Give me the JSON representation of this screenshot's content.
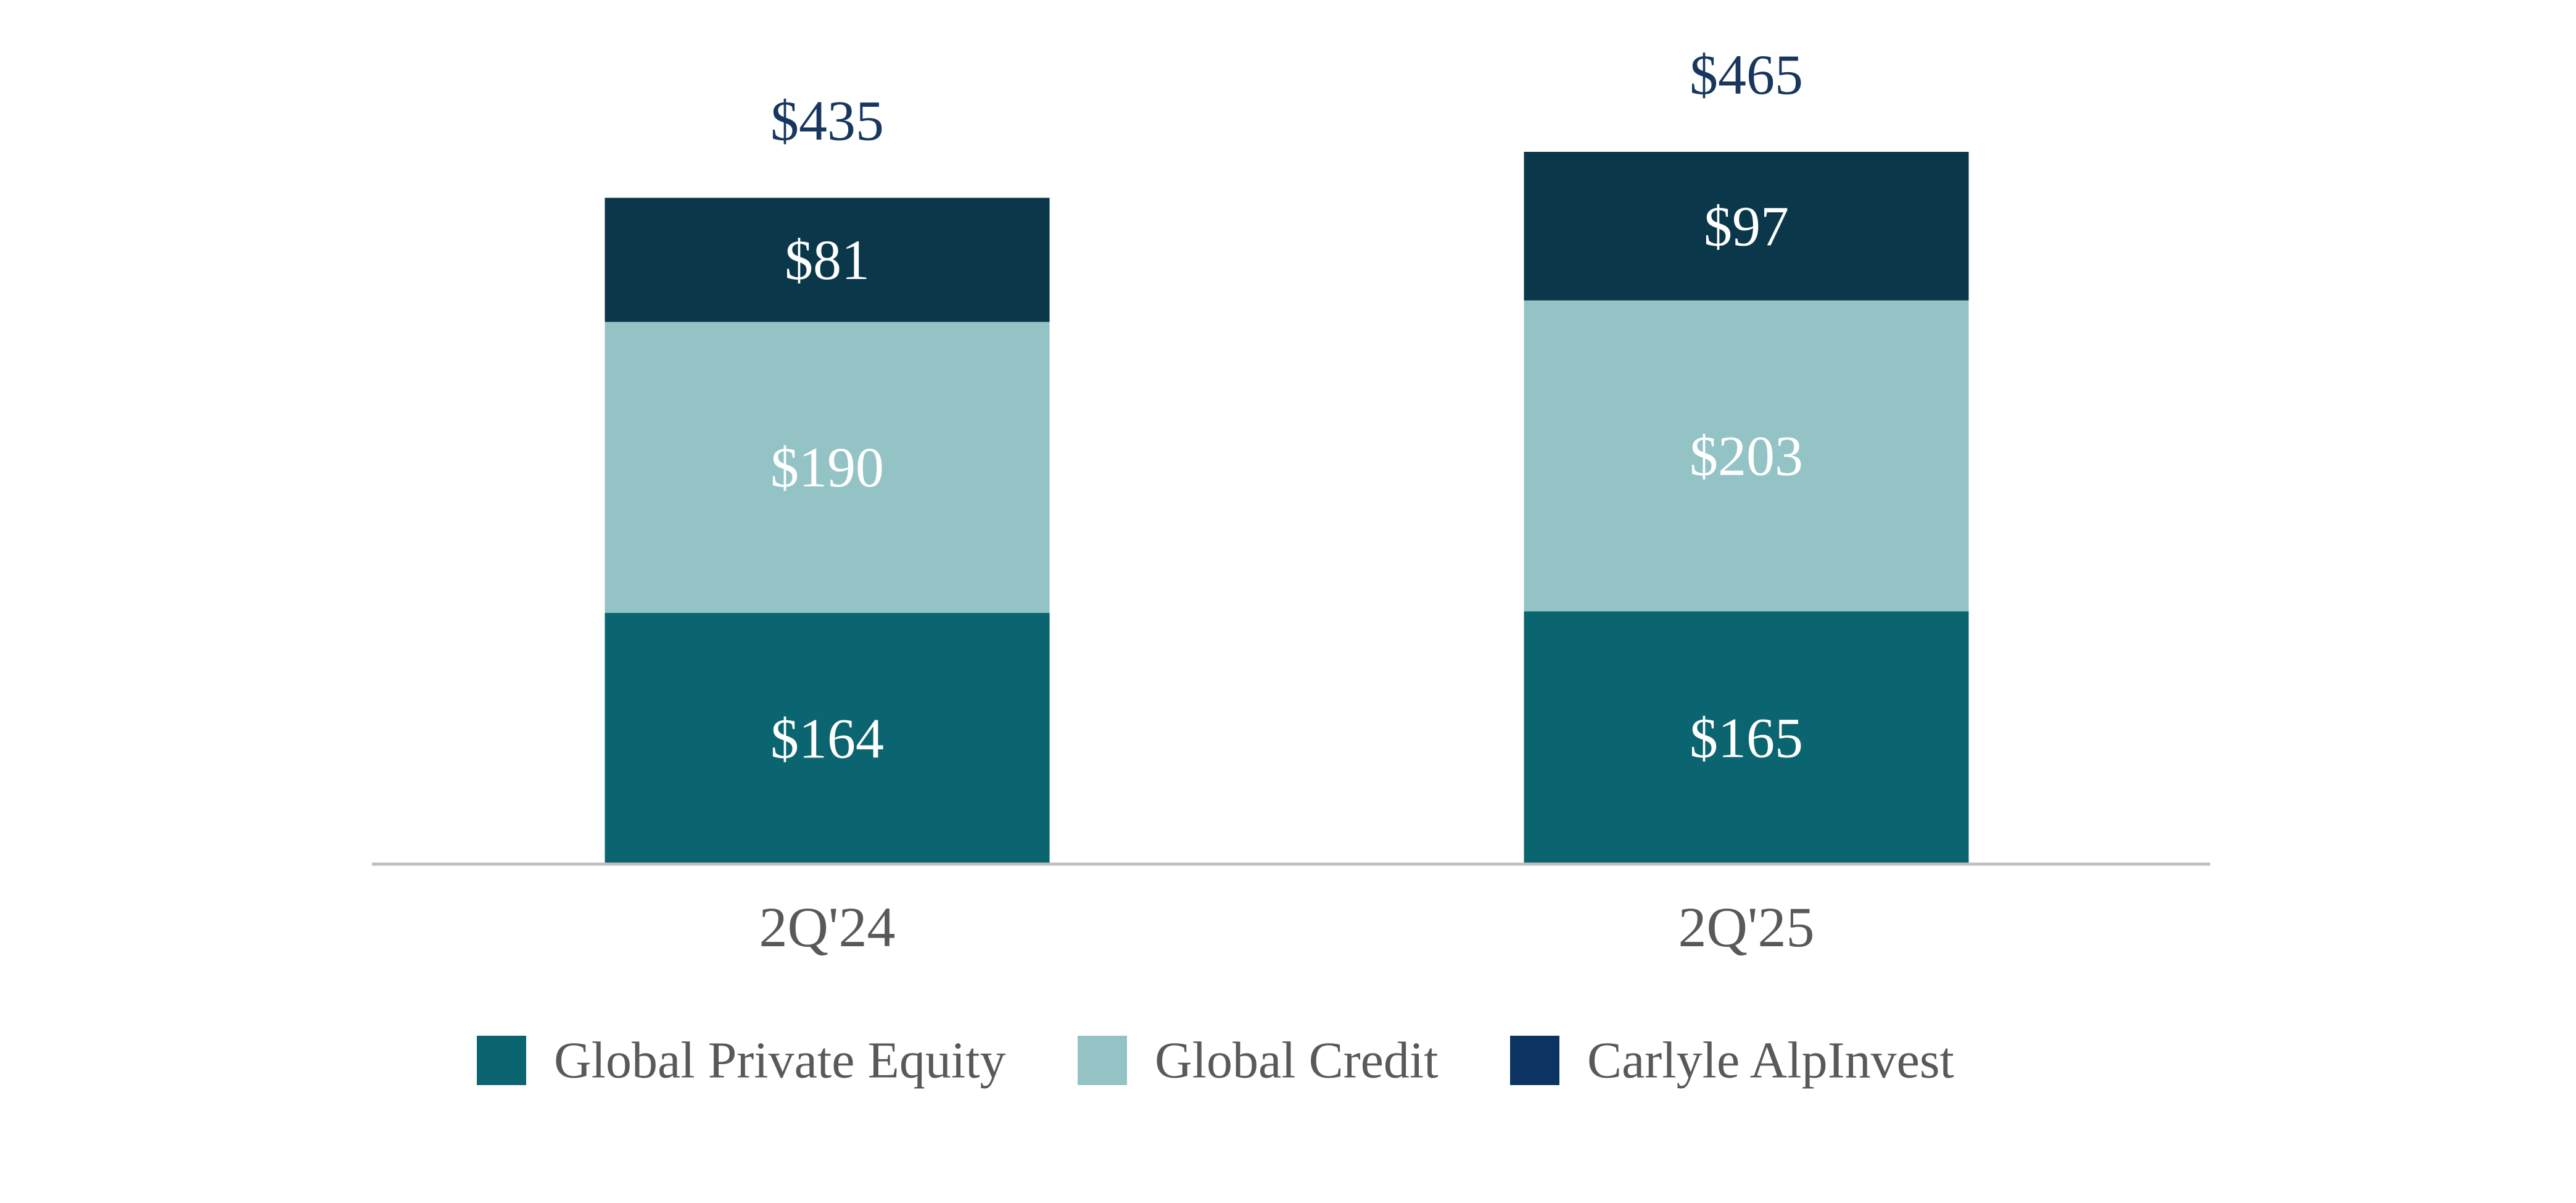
{
  "chart_data": {
    "type": "bar",
    "stacked": true,
    "categories": [
      "2Q'24",
      "2Q'25"
    ],
    "series": [
      {
        "name": "Global Private Equity",
        "values": [
          164,
          165
        ],
        "labels": [
          "$164",
          "$165"
        ],
        "color": "#0b6570"
      },
      {
        "name": "Global Credit",
        "values": [
          190,
          203
        ],
        "labels": [
          "$190",
          "$203"
        ],
        "color": "#94c3c6"
      },
      {
        "name": "Carlyle AlpInvest",
        "values": [
          81,
          97
        ],
        "labels": [
          "$81",
          "$97"
        ],
        "color": "#0a374a"
      }
    ],
    "totals": [
      435,
      465
    ],
    "total_labels": [
      "$435",
      "$465"
    ],
    "title": "",
    "xlabel": "",
    "ylabel": "",
    "ylim": [
      0,
      465
    ],
    "legend": {
      "placement": "bottom",
      "entries": [
        {
          "label": "Global Private Equity",
          "color": "#0b6570"
        },
        {
          "label": "Global Credit",
          "color": "#94c3c6"
        },
        {
          "label": "Carlyle AlpInvest",
          "color": "#0b3462"
        }
      ]
    },
    "colors": {
      "total_label": "#17375e",
      "axis": "#bfbfbf",
      "tick_label": "#595959"
    }
  }
}
